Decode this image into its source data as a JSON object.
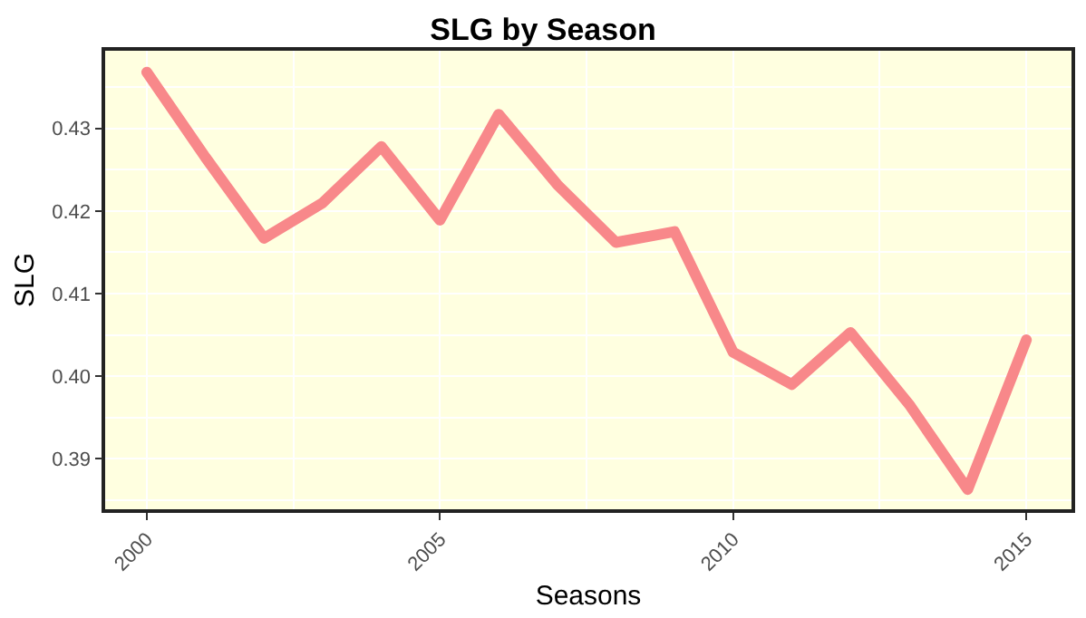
{
  "chart_data": {
    "type": "line",
    "title": "SLG by Season",
    "xlabel": "Seasons",
    "ylabel": "SLG",
    "x": [
      2000,
      2001,
      2002,
      2003,
      2004,
      2005,
      2006,
      2007,
      2008,
      2009,
      2010,
      2011,
      2012,
      2013,
      2014,
      2015
    ],
    "series": [
      {
        "color": "#f8888a",
        "values": [
          0.4368,
          0.4265,
          0.4167,
          0.421,
          0.4278,
          0.4189,
          0.4317,
          0.4232,
          0.4162,
          0.4175,
          0.4029,
          0.399,
          0.4053,
          0.3966,
          0.3863,
          0.4044
        ]
      }
    ],
    "xlim": [
      1999.29,
      2015.77
    ],
    "xticks": [
      2000,
      2005,
      2010,
      2015
    ],
    "ylim": [
      0.3839,
      0.4394
    ],
    "yticks": [
      {
        "value": 0.39,
        "label": "0.39"
      },
      {
        "value": 0.4,
        "label": "0.40"
      },
      {
        "value": 0.41,
        "label": "0.41"
      },
      {
        "value": 0.42,
        "label": "0.42"
      },
      {
        "value": 0.43,
        "label": "0.43"
      }
    ],
    "grid": true,
    "legend": false,
    "marker": "none",
    "line_style": "solid"
  }
}
